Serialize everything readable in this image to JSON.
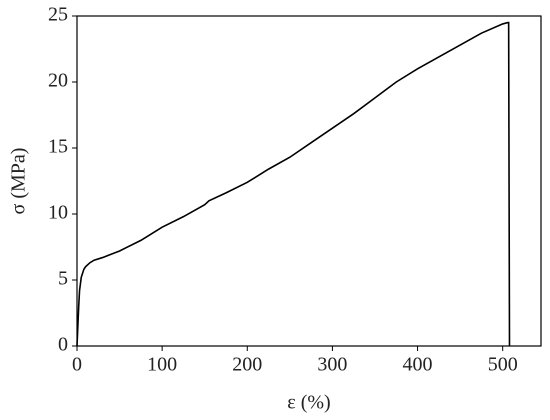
{
  "chart_data": {
    "type": "line",
    "x_label": "ε (%)",
    "y_label": "σ (MPa)",
    "series": [
      {
        "color": "#000000",
        "x": [
          0,
          1,
          2,
          3,
          5,
          8,
          10,
          15,
          20,
          30,
          50,
          75,
          100,
          125,
          150,
          155,
          175,
          200,
          225,
          250,
          275,
          300,
          325,
          350,
          375,
          400,
          425,
          450,
          475,
          500,
          506,
          507,
          507.5,
          508
        ],
        "values": [
          0,
          1.5,
          3.0,
          4.2,
          5.2,
          5.8,
          6.0,
          6.3,
          6.5,
          6.7,
          7.2,
          8.0,
          9.0,
          9.8,
          10.7,
          11.0,
          11.6,
          12.4,
          13.4,
          14.3,
          15.4,
          16.5,
          17.6,
          18.8,
          20.0,
          21.0,
          21.9,
          22.8,
          23.7,
          24.4,
          24.5,
          24.5,
          12.0,
          0
        ]
      }
    ],
    "xlim": [
      0,
      545
    ],
    "ylim": [
      0,
      25
    ],
    "xticks": [
      0,
      100,
      200,
      300,
      400,
      500
    ],
    "yticks": [
      0,
      5,
      10,
      15,
      20,
      25
    ]
  }
}
